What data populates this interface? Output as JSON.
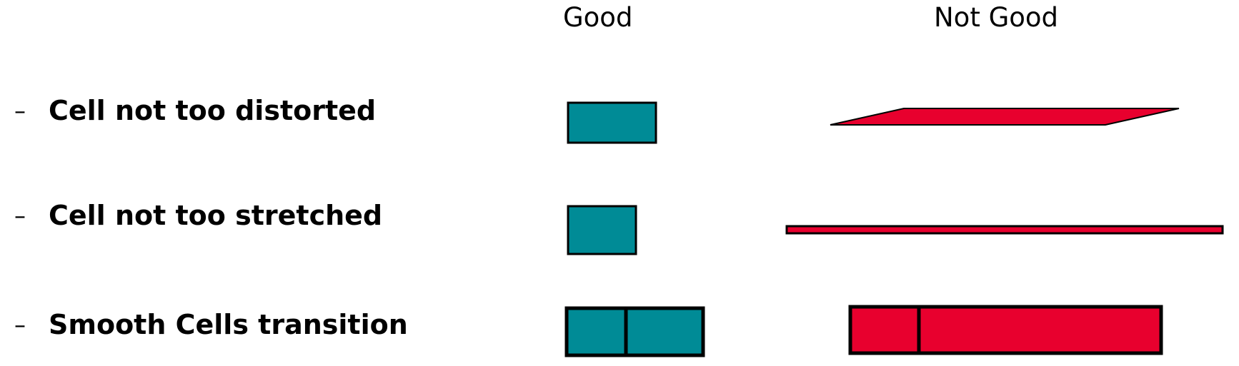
{
  "headers": {
    "good": "Good",
    "not_good": "Not Good"
  },
  "rows": [
    {
      "bullet": "–",
      "label": "Cell not too distorted"
    },
    {
      "bullet": "–",
      "label": "Cell not too stretched"
    },
    {
      "bullet": "–",
      "label": "Smooth Cells transition"
    }
  ],
  "colors": {
    "good_fill": "#008b96",
    "bad_fill": "#e8002e",
    "stroke": "#000000"
  }
}
